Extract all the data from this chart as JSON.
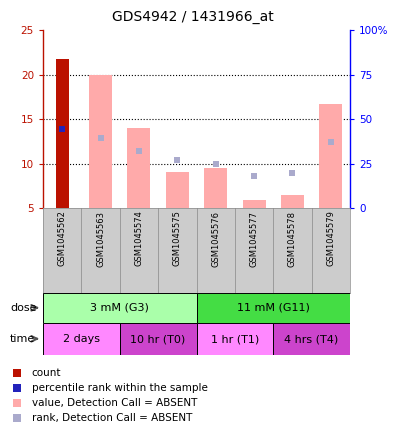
{
  "title": "GDS4942 / 1431966_at",
  "samples": [
    "GSM1045562",
    "GSM1045563",
    "GSM1045574",
    "GSM1045575",
    "GSM1045576",
    "GSM1045577",
    "GSM1045578",
    "GSM1045579"
  ],
  "count_values": [
    21.7,
    null,
    null,
    null,
    null,
    null,
    null,
    null
  ],
  "percentile_values": [
    13.9,
    null,
    null,
    null,
    null,
    null,
    null,
    null
  ],
  "absent_value_bars": [
    null,
    20.0,
    14.0,
    9.0,
    9.5,
    5.9,
    6.5,
    16.7
  ],
  "absent_rank_values": [
    null,
    12.9,
    11.4,
    10.4,
    9.9,
    8.6,
    8.9,
    12.4
  ],
  "absent_value_bottoms": [
    null,
    5.0,
    5.0,
    5.0,
    5.0,
    5.0,
    5.0,
    5.0
  ],
  "ylim_left": [
    5,
    25
  ],
  "ylim_right": [
    0,
    100
  ],
  "yticks_left": [
    5,
    10,
    15,
    20,
    25
  ],
  "yticks_right": [
    0,
    25,
    50,
    75,
    100
  ],
  "ytick_labels_right": [
    "0",
    "25",
    "50",
    "75",
    "100%"
  ],
  "dose_groups": [
    {
      "label": "3 mM (G3)",
      "start": 0,
      "end": 4,
      "color": "#AAFFAA"
    },
    {
      "label": "11 mM (G11)",
      "start": 4,
      "end": 8,
      "color": "#44DD44"
    }
  ],
  "time_groups": [
    {
      "label": "2 days",
      "start": 0,
      "end": 2,
      "color": "#FF88FF"
    },
    {
      "label": "10 hr (T0)",
      "start": 2,
      "end": 4,
      "color": "#CC44CC"
    },
    {
      "label": "1 hr (T1)",
      "start": 4,
      "end": 6,
      "color": "#FF88FF"
    },
    {
      "label": "4 hrs (T4)",
      "start": 6,
      "end": 8,
      "color": "#CC44CC"
    }
  ],
  "count_color": "#BB1100",
  "percentile_color": "#2222BB",
  "absent_value_color": "#FFAAAA",
  "absent_rank_color": "#AAAACC",
  "grid_color": "black",
  "sample_bg_color": "#CCCCCC",
  "legend_items": [
    {
      "color": "#BB1100",
      "label": "count",
      "marker": "s"
    },
    {
      "color": "#2222BB",
      "label": "percentile rank within the sample",
      "marker": "s"
    },
    {
      "color": "#FFAAAA",
      "label": "value, Detection Call = ABSENT",
      "marker": "s"
    },
    {
      "color": "#AAAACC",
      "label": "rank, Detection Call = ABSENT",
      "marker": "s"
    }
  ]
}
